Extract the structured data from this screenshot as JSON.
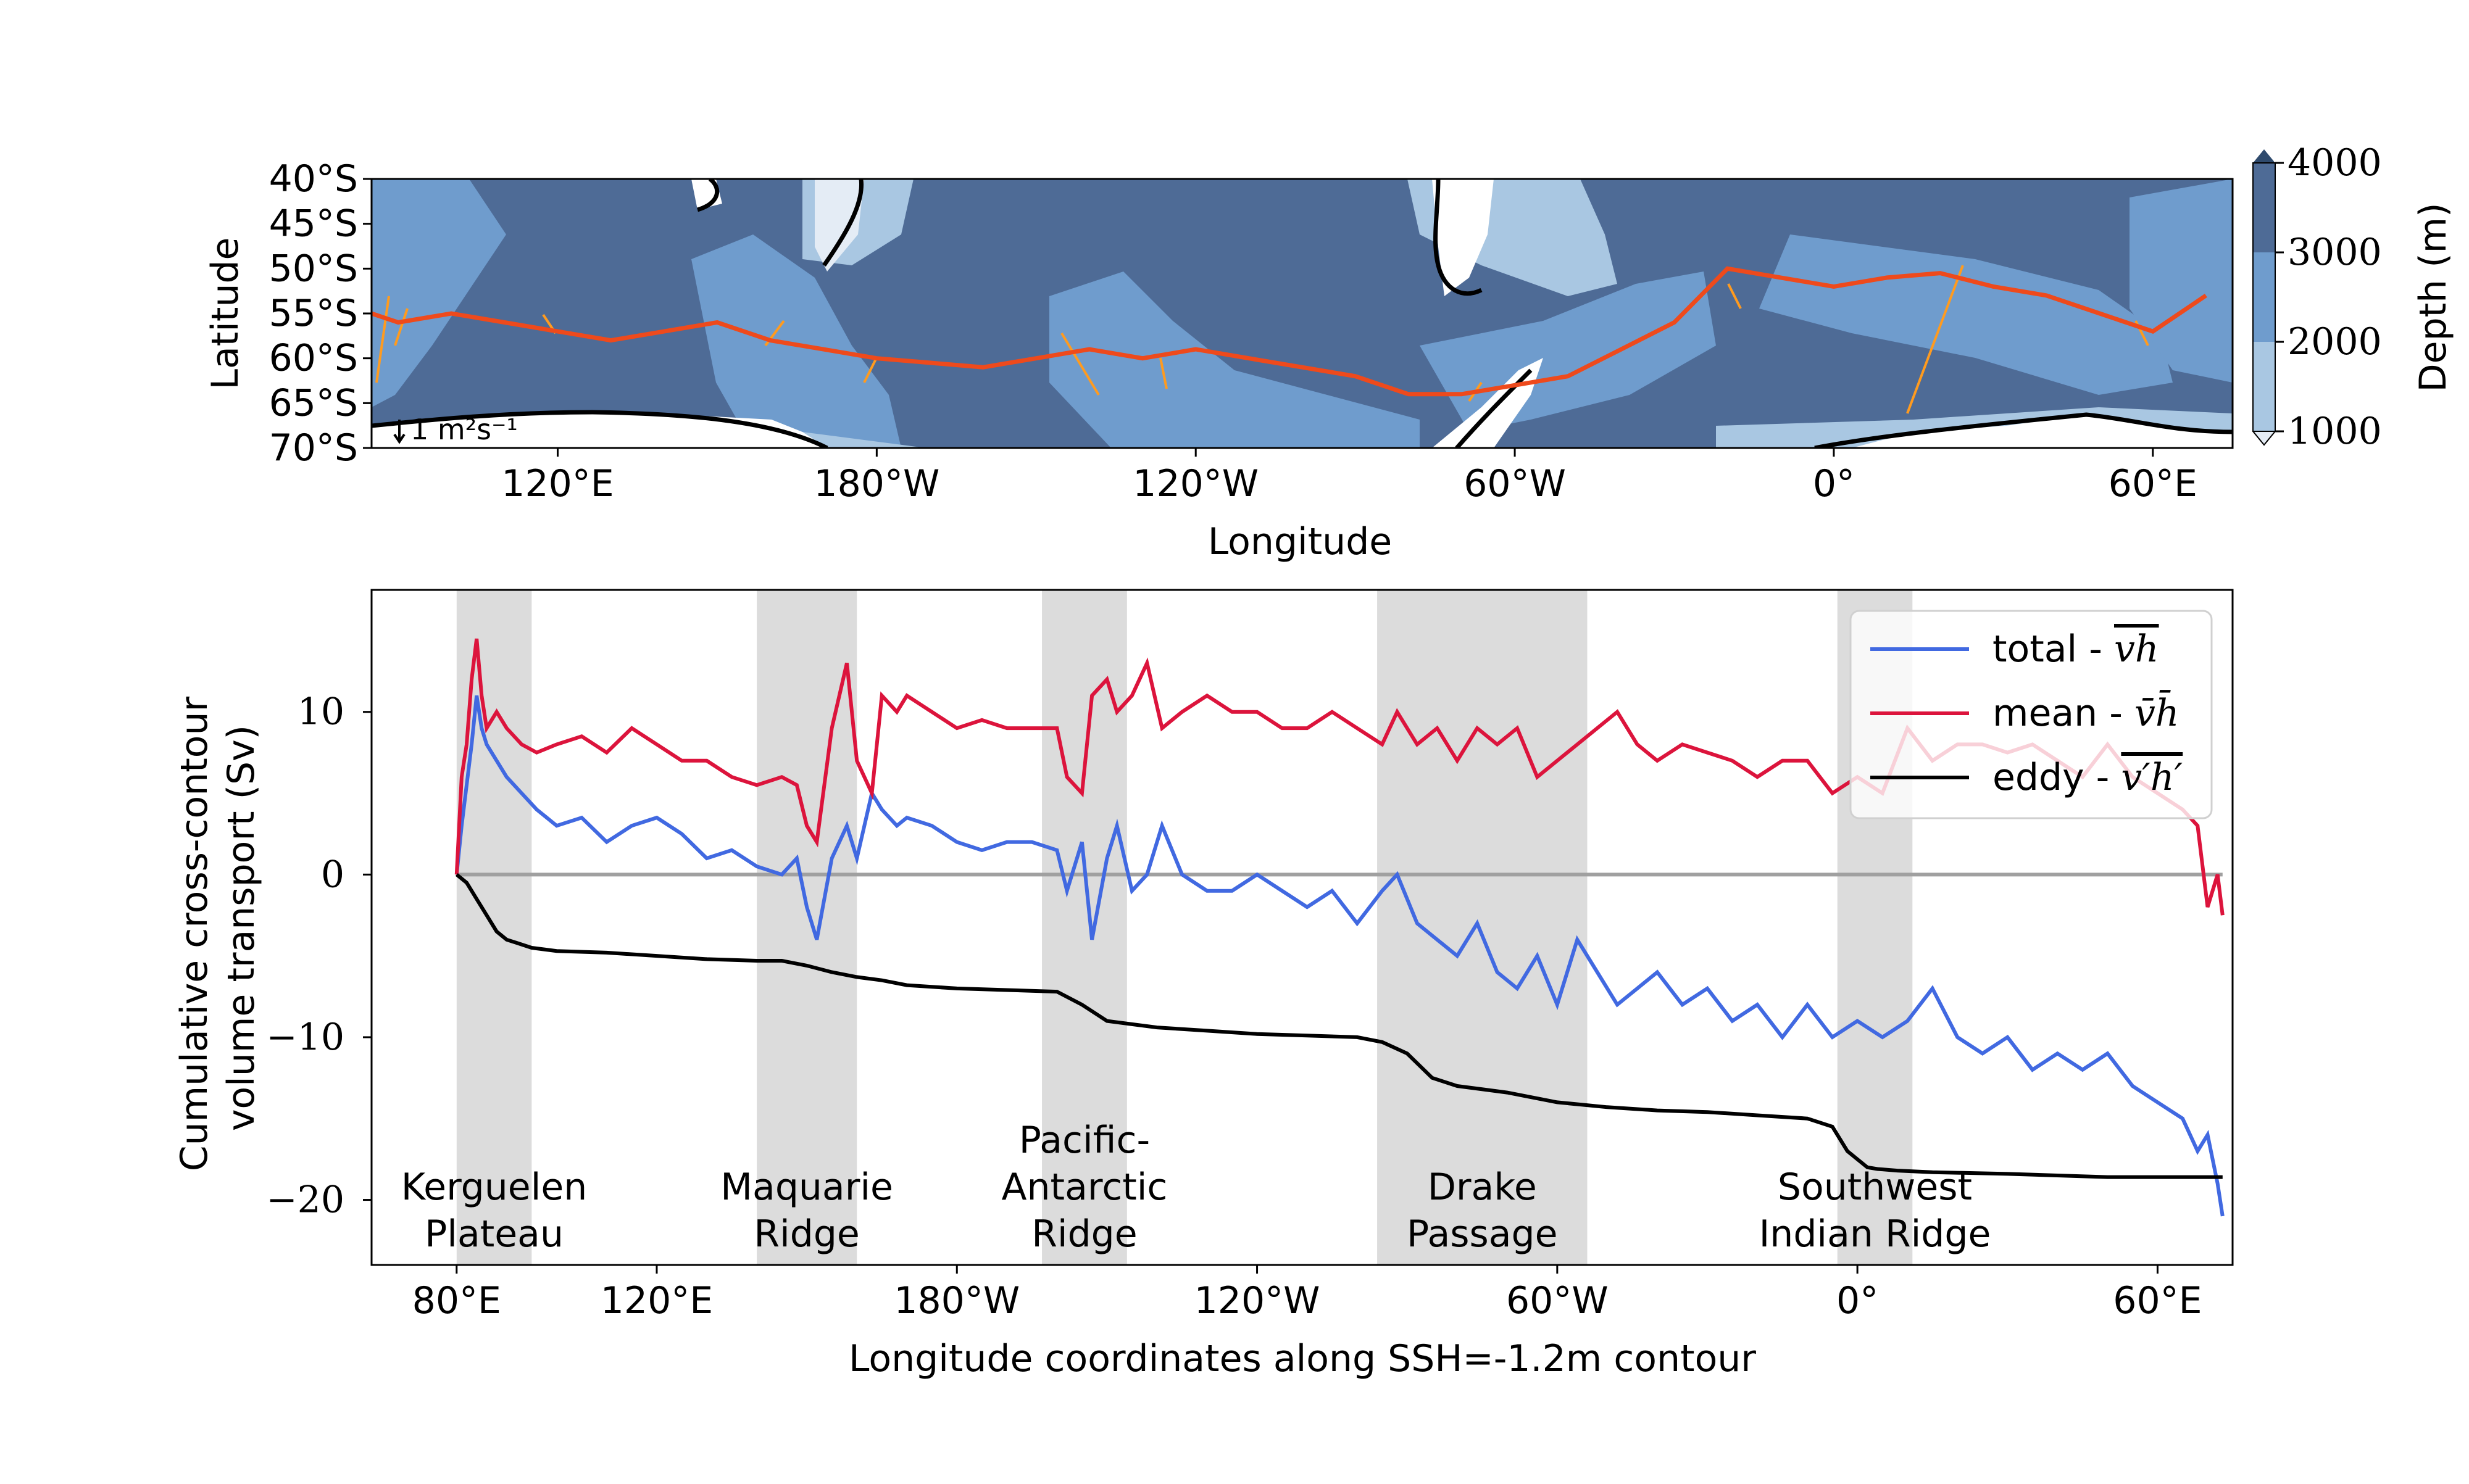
{
  "chart_data": [
    {
      "type": "map",
      "title": "",
      "xlabel": "Longitude",
      "ylabel": "Latitude",
      "xticks": [
        "120°E",
        "180°W",
        "120°W",
        "60°W",
        "0°",
        "60°E"
      ],
      "yticks": [
        "40°S",
        "45°S",
        "50°S",
        "55°S",
        "60°S",
        "65°S",
        "70°S"
      ],
      "colorbar": {
        "label": "Depth (m)",
        "ticks": [
          "4000",
          "3000",
          "2000",
          "1000"
        ],
        "colors": [
          "#e4ecf5",
          "#a9c7e2",
          "#6f9ccd",
          "#4e6b96"
        ]
      },
      "scale_label": "1 m²s⁻¹",
      "contour_label": "SSH=-1.2m contour",
      "contour_color": "#ee4a1c",
      "arrow_color": "#ff9b1f",
      "contour_lat_by_lon": {
        "lon": [
          70,
          80,
          90,
          100,
          110,
          120,
          130,
          140,
          150,
          160,
          170,
          180,
          190,
          200,
          210,
          220,
          230,
          240,
          250,
          260,
          270,
          280,
          290,
          300,
          310,
          320,
          330,
          340,
          350,
          360,
          370,
          380,
          390,
          400,
          410,
          420,
          430
        ],
        "lat": [
          -53,
          -54,
          -56,
          -55,
          -56,
          -57,
          -58,
          -57,
          -56,
          -58,
          -59,
          -60,
          -60.5,
          -61,
          -60,
          -59,
          -60,
          -59,
          -60,
          -61,
          -62,
          -64,
          -64,
          -63,
          -62,
          -59,
          -56,
          -50,
          -51,
          -52,
          -51,
          -50.5,
          -52,
          -53,
          -55,
          -57,
          -53
        ]
      }
    },
    {
      "type": "line",
      "title": "",
      "xlabel": "Longitude coordinates along SSH=-1.2m contour",
      "ylabel": "Cumulative cross-contour volume transport (Sv)",
      "xticks": [
        "80°E",
        "120°E",
        "180°W",
        "120°W",
        "60°W",
        "0°",
        "60°E"
      ],
      "xtick_positions": [
        80,
        120,
        180,
        240,
        300,
        360,
        420
      ],
      "yticks": [
        -20,
        -10,
        0,
        10
      ],
      "ylim": [
        -24,
        17.5
      ],
      "xlim": [
        63,
        435
      ],
      "shaded_regions": [
        {
          "label": "Kerguelen Plateau",
          "lines": [
            "Kerguelen",
            "Plateau"
          ],
          "x0": 80,
          "x1": 95
        },
        {
          "label": "Maquarie Ridge",
          "lines": [
            "Maquarie",
            "Ridge"
          ],
          "x0": 140,
          "x1": 160
        },
        {
          "label": "Pacific-Antarctic Ridge",
          "lines": [
            "Pacific-",
            "Antarctic",
            "Ridge"
          ],
          "x0": 197,
          "x1": 214
        },
        {
          "label": "Drake Passage",
          "lines": [
            "Drake",
            "Passage"
          ],
          "x0": 264,
          "x1": 306
        },
        {
          "label": "Southwest Indian Ridge",
          "lines": [
            "Southwest",
            "Indian Ridge"
          ],
          "x0": 356,
          "x1": 371
        }
      ],
      "legend": {
        "placement": "top-right",
        "entries": [
          {
            "name": "total",
            "symbol": "v̄h̄ (overline vh)"
          },
          {
            "name": "mean",
            "symbol": "v̄ h̄"
          },
          {
            "name": "eddy",
            "symbol": "v′h′ (overline)"
          }
        ]
      },
      "series": [
        {
          "name": "total",
          "color": "#4169e1",
          "x": [
            80,
            81,
            83,
            84,
            85,
            86,
            88,
            90,
            93,
            96,
            100,
            105,
            110,
            115,
            120,
            125,
            130,
            135,
            140,
            145,
            148,
            150,
            152,
            155,
            158,
            160,
            163,
            165,
            168,
            170,
            175,
            180,
            185,
            190,
            195,
            200,
            202,
            205,
            207,
            210,
            212,
            215,
            218,
            221,
            225,
            230,
            235,
            240,
            245,
            250,
            255,
            260,
            265,
            268,
            272,
            276,
            280,
            284,
            288,
            292,
            296,
            300,
            304,
            308,
            312,
            316,
            320,
            325,
            330,
            335,
            340,
            345,
            350,
            355,
            360,
            365,
            370,
            375,
            380,
            385,
            390,
            395,
            400,
            405,
            410,
            415,
            420,
            425,
            428,
            430,
            432,
            433
          ],
          "values": [
            0,
            3,
            8,
            11,
            9,
            8,
            7,
            6,
            5,
            4,
            3,
            3.5,
            2,
            3,
            3.5,
            2.5,
            1,
            1.5,
            0.5,
            0,
            1,
            -2,
            -4,
            1,
            3,
            1,
            5,
            4,
            3,
            3.5,
            3,
            2,
            1.5,
            2,
            2,
            1.5,
            -1,
            2,
            -4,
            1,
            3,
            -1,
            0,
            3,
            0,
            -1,
            -1,
            0,
            -1,
            -2,
            -1,
            -3,
            -1,
            0,
            -3,
            -4,
            -5,
            -3,
            -6,
            -7,
            -5,
            -8,
            -4,
            -6,
            -8,
            -7,
            -6,
            -8,
            -7,
            -9,
            -8,
            -10,
            -8,
            -10,
            -9,
            -10,
            -9,
            -7,
            -10,
            -11,
            -10,
            -12,
            -11,
            -12,
            -11,
            -13,
            -14,
            -15,
            -17,
            -16,
            -19,
            -21
          ]
        },
        {
          "name": "mean",
          "color": "#dc143c",
          "x": [
            80,
            81,
            82,
            83,
            84,
            85,
            86,
            88,
            90,
            93,
            96,
            100,
            105,
            110,
            115,
            120,
            125,
            130,
            135,
            140,
            145,
            148,
            150,
            152,
            155,
            158,
            160,
            163,
            165,
            168,
            170,
            175,
            180,
            185,
            190,
            195,
            200,
            202,
            205,
            207,
            210,
            212,
            215,
            218,
            221,
            225,
            230,
            235,
            240,
            245,
            250,
            255,
            260,
            265,
            268,
            272,
            276,
            280,
            284,
            288,
            292,
            296,
            300,
            304,
            308,
            312,
            316,
            320,
            325,
            330,
            335,
            340,
            345,
            350,
            355,
            360,
            365,
            370,
            375,
            380,
            385,
            390,
            395,
            400,
            405,
            410,
            415,
            420,
            425,
            428,
            430,
            432,
            433
          ],
          "values": [
            0,
            6,
            8,
            12,
            14.5,
            11,
            9,
            10,
            9,
            8,
            7.5,
            8,
            8.5,
            7.5,
            9,
            8,
            7,
            7,
            6,
            5.5,
            6,
            5.5,
            3,
            2,
            9,
            13,
            7,
            5,
            11,
            10,
            11,
            10,
            9,
            9.5,
            9,
            9,
            9,
            6,
            5,
            11,
            12,
            10,
            11,
            13,
            9,
            10,
            11,
            10,
            10,
            9,
            9,
            10,
            9,
            8,
            10,
            8,
            9,
            7,
            9,
            8,
            9,
            6,
            7,
            8,
            9,
            10,
            8,
            7,
            8,
            7.5,
            7,
            6,
            7,
            7,
            5,
            6,
            5,
            9,
            7,
            8,
            8,
            7.5,
            8,
            7,
            6,
            8,
            6,
            5,
            4,
            3,
            -2,
            0,
            -2.5
          ]
        },
        {
          "name": "eddy",
          "color": "#000000",
          "x": [
            80,
            82,
            84,
            86,
            88,
            90,
            92,
            95,
            100,
            110,
            120,
            130,
            140,
            145,
            150,
            155,
            160,
            165,
            170,
            180,
            190,
            200,
            205,
            210,
            215,
            220,
            230,
            240,
            250,
            260,
            265,
            270,
            275,
            280,
            290,
            300,
            310,
            320,
            330,
            340,
            350,
            355,
            358,
            360,
            362,
            364,
            368,
            375,
            390,
            400,
            410,
            420,
            430,
            433
          ],
          "values": [
            0,
            -0.5,
            -1.5,
            -2.5,
            -3.5,
            -4,
            -4.2,
            -4.5,
            -4.7,
            -4.8,
            -5,
            -5.2,
            -5.3,
            -5.3,
            -5.6,
            -6,
            -6.3,
            -6.5,
            -6.8,
            -7,
            -7.1,
            -7.2,
            -8,
            -9,
            -9.2,
            -9.4,
            -9.6,
            -9.8,
            -9.9,
            -10,
            -10.3,
            -11,
            -12.5,
            -13,
            -13.4,
            -14,
            -14.3,
            -14.5,
            -14.6,
            -14.8,
            -15,
            -15.5,
            -17,
            -17.5,
            -18,
            -18.1,
            -18.2,
            -18.3,
            -18.4,
            -18.5,
            -18.6,
            -18.6,
            -18.6,
            -18.6
          ]
        }
      ]
    }
  ]
}
